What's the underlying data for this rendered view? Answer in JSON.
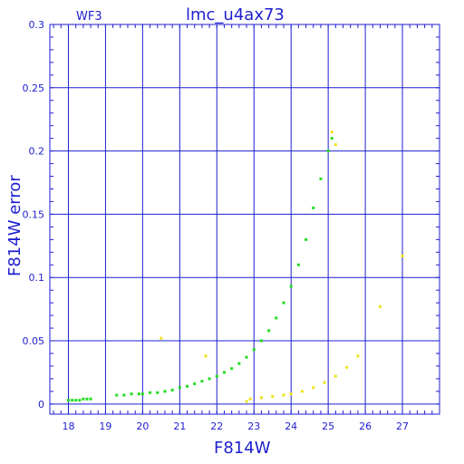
{
  "header": {
    "left_tag": "WF3",
    "title": "lmc_u4ax73"
  },
  "chart_data": {
    "type": "scatter",
    "xlabel": "F814W",
    "ylabel": "F814W error",
    "xlim": [
      17.5,
      28.0
    ],
    "ylim": [
      -0.008,
      0.3
    ],
    "x_ticks": [
      "18",
      "19",
      "20",
      "21",
      "22",
      "23",
      "24",
      "25",
      "26",
      "27"
    ],
    "y_ticks": [
      "0",
      "0.05",
      "0.1",
      "0.15",
      "0.2",
      "0.25",
      "0.3"
    ],
    "grid": true,
    "colors": {
      "axis": "#1f1fd0",
      "grid": "#1f1fd0",
      "green": "#22dd22",
      "yellow": "#f0e21a"
    },
    "series": [
      {
        "color": "green",
        "points": [
          [
            18.0,
            0.003
          ],
          [
            18.1,
            0.003
          ],
          [
            18.2,
            0.003
          ],
          [
            18.3,
            0.003
          ],
          [
            18.4,
            0.004
          ],
          [
            18.5,
            0.004
          ],
          [
            18.6,
            0.004
          ],
          [
            19.3,
            0.007
          ],
          [
            19.5,
            0.007
          ],
          [
            19.7,
            0.008
          ],
          [
            19.9,
            0.008
          ],
          [
            20.0,
            0.008
          ],
          [
            20.2,
            0.009
          ],
          [
            20.4,
            0.009
          ],
          [
            20.6,
            0.01
          ],
          [
            20.8,
            0.011
          ],
          [
            21.0,
            0.013
          ],
          [
            21.2,
            0.014
          ],
          [
            21.4,
            0.016
          ],
          [
            21.6,
            0.018
          ],
          [
            21.8,
            0.02
          ],
          [
            22.0,
            0.022
          ],
          [
            22.2,
            0.025
          ],
          [
            22.4,
            0.028
          ],
          [
            22.6,
            0.032
          ],
          [
            22.8,
            0.037
          ],
          [
            23.0,
            0.043
          ],
          [
            23.2,
            0.05
          ],
          [
            23.4,
            0.058
          ],
          [
            23.6,
            0.068
          ],
          [
            23.8,
            0.08
          ],
          [
            24.0,
            0.093
          ],
          [
            24.2,
            0.11
          ],
          [
            24.4,
            0.13
          ],
          [
            24.6,
            0.155
          ],
          [
            24.8,
            0.178
          ],
          [
            25.0,
            0.2
          ],
          [
            25.1,
            0.21
          ]
        ]
      },
      {
        "color": "yellow",
        "points": [
          [
            22.9,
            0.004
          ],
          [
            23.2,
            0.005
          ],
          [
            23.5,
            0.006
          ],
          [
            23.8,
            0.007
          ],
          [
            24.0,
            0.008
          ],
          [
            24.3,
            0.01
          ],
          [
            24.6,
            0.013
          ],
          [
            24.9,
            0.017
          ],
          [
            25.2,
            0.022
          ],
          [
            25.5,
            0.029
          ],
          [
            25.8,
            0.038
          ],
          [
            26.4,
            0.077
          ],
          [
            27.0,
            0.117
          ],
          [
            25.1,
            0.215
          ],
          [
            25.2,
            0.205
          ],
          [
            22.8,
            0.002
          ],
          [
            21.7,
            0.038
          ],
          [
            20.5,
            0.052
          ]
        ]
      }
    ]
  }
}
